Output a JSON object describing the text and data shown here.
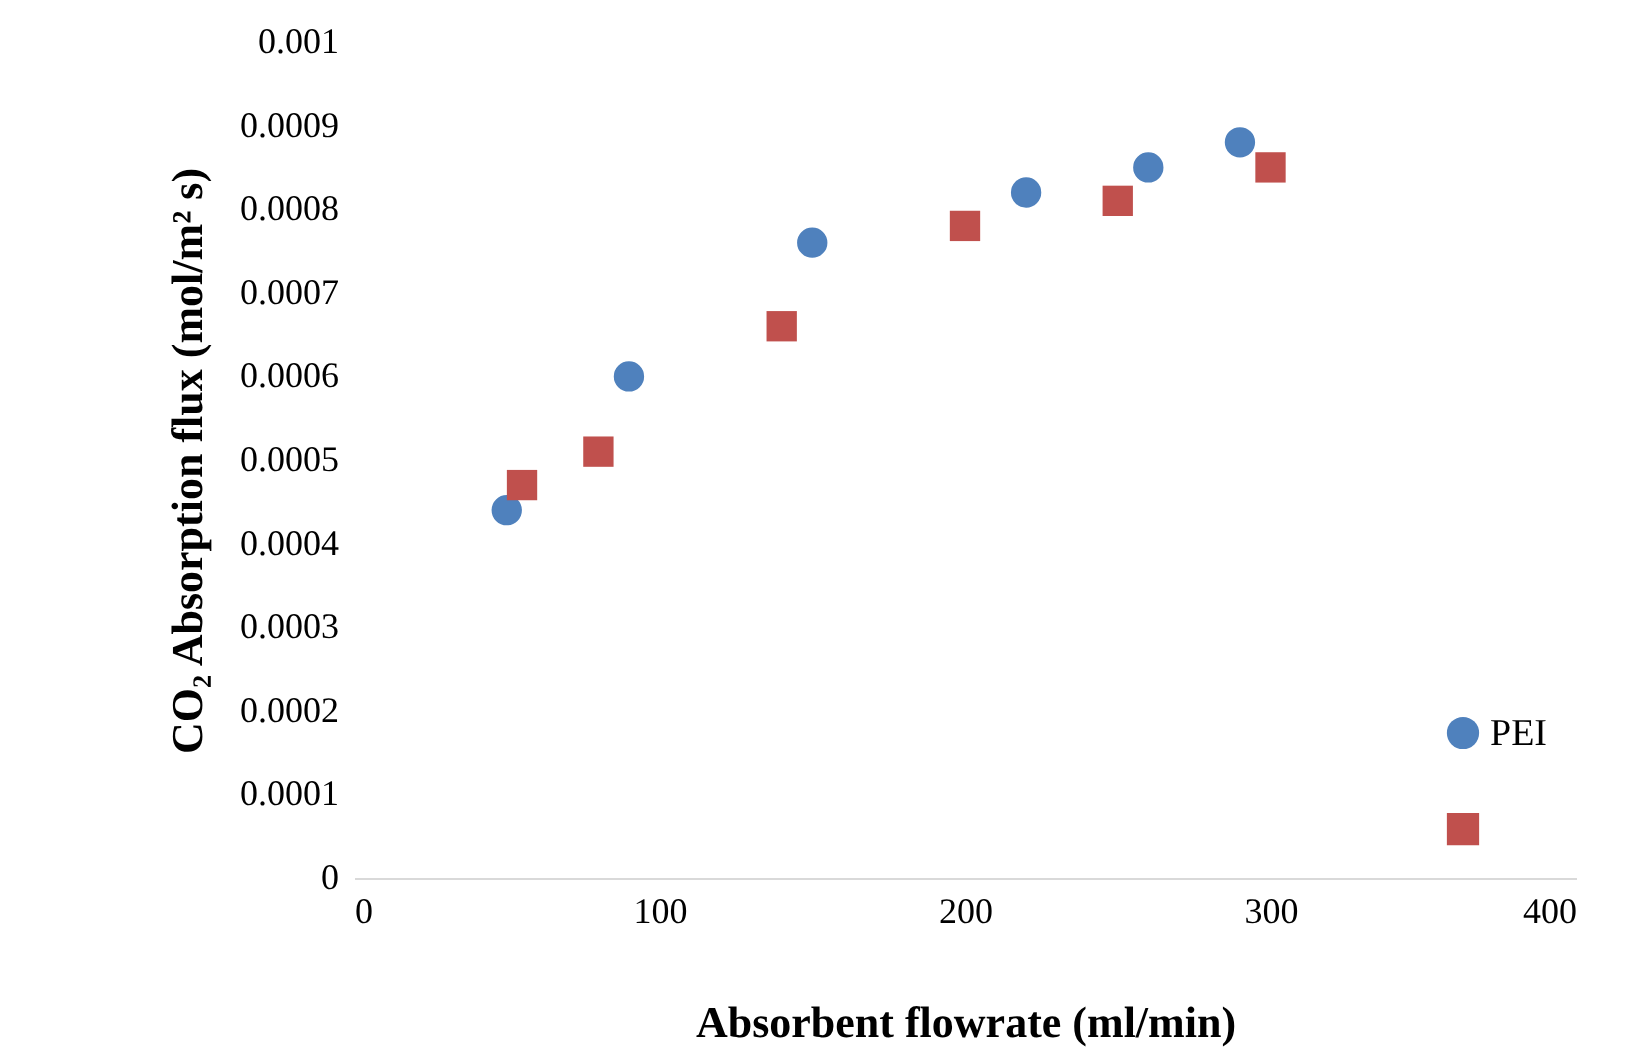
{
  "chart_data": {
    "type": "scatter",
    "xlabel": "Absorbent flowrate (ml/min)",
    "ylabel": "CO₂ Absorption flux (mol/m² s)",
    "xlim": [
      0,
      400
    ],
    "xticks": [
      0,
      100,
      200,
      300,
      400
    ],
    "ylim": [
      0,
      0.001
    ],
    "yticks": [
      0,
      0.0001,
      0.0002,
      0.0003,
      0.0004,
      0.0005,
      0.0006,
      0.0007,
      0.0008,
      0.0009,
      0.001
    ],
    "grid": false,
    "legend": "bottom right",
    "series": [
      {
        "name": "PEI",
        "color": "#4f81bd",
        "marker": "circle",
        "x": [
          50,
          90,
          150,
          220,
          260,
          290
        ],
        "values": [
          0.00044,
          0.0006,
          0.00076,
          0.00082,
          0.00085,
          0.00088
        ]
      },
      {
        "color": "#c0504d",
        "marker": "square",
        "x": [
          55,
          80,
          140,
          200,
          250,
          300
        ],
        "values": [
          0.00047,
          0.00051,
          0.00066,
          0.00078,
          0.00081,
          0.00085
        ]
      }
    ]
  }
}
